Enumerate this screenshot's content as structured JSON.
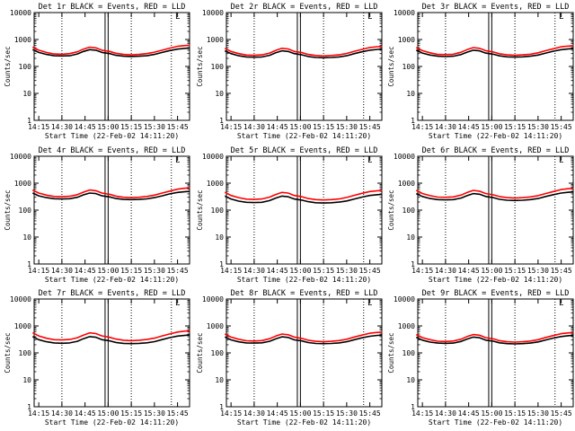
{
  "page": {
    "background": "#ffffff"
  },
  "colors": {
    "events": "#000000",
    "lld": "#ff0000",
    "axis": "#000000"
  },
  "shared": {
    "xlabel": "Start Time (22-Feb-02 14:11:20)",
    "ylabel": "Counts/sec",
    "x_ticks": [
      "14:15",
      "14:30",
      "14:45",
      "15:00",
      "15:15",
      "15:30",
      "15:45"
    ],
    "y_ticks": [
      "1",
      "10",
      "100",
      "1000",
      "10000"
    ],
    "corner_mark": "L"
  },
  "chart_data": [
    {
      "type": "line",
      "title": "Det 1r BLACK = Events, RED = LLD",
      "xlabel": "Start Time (22-Feb-02 14:11:20)",
      "ylabel": "Counts/sec",
      "y_scale": "log",
      "ylim": [
        1,
        10000
      ],
      "x_range_min": [
        14.2,
        15.88
      ],
      "vlines_dotted": [
        "14:30",
        "15:15",
        "15:41"
      ],
      "vlines_solid": [
        "14:58",
        "15:00"
      ],
      "x": [
        "14:11",
        "14:15",
        "14:20",
        "14:25",
        "14:30",
        "14:35",
        "14:40",
        "14:44",
        "14:48",
        "14:52",
        "14:56",
        "15:01",
        "15:05",
        "15:10",
        "15:15",
        "15:20",
        "15:25",
        "15:30",
        "15:35",
        "15:40",
        "15:45",
        "15:50",
        "15:53"
      ],
      "series": [
        {
          "name": "Events",
          "values": [
            420,
            330,
            280,
            250,
            245,
            250,
            290,
            360,
            420,
            400,
            330,
            300,
            260,
            240,
            235,
            240,
            250,
            280,
            330,
            390,
            440,
            470,
            480
          ]
        },
        {
          "name": "LLD",
          "values": [
            520,
            400,
            330,
            290,
            285,
            300,
            350,
            440,
            520,
            490,
            400,
            360,
            310,
            280,
            270,
            280,
            300,
            340,
            400,
            480,
            560,
            600,
            610
          ]
        }
      ]
    },
    {
      "type": "line",
      "title": "Det 2r BLACK = Events, RED = LLD",
      "xlabel": "Start Time (22-Feb-02 14:11:20)",
      "ylabel": "Counts/sec",
      "y_scale": "log",
      "ylim": [
        1,
        10000
      ],
      "x_range_min": [
        14.2,
        15.88
      ],
      "vlines_dotted": [
        "14:30",
        "15:15",
        "15:41"
      ],
      "vlines_solid": [
        "14:58",
        "15:00"
      ],
      "x": [
        "14:11",
        "14:15",
        "14:20",
        "14:25",
        "14:30",
        "14:35",
        "14:40",
        "14:44",
        "14:48",
        "14:52",
        "14:56",
        "15:01",
        "15:05",
        "15:10",
        "15:15",
        "15:20",
        "15:25",
        "15:30",
        "15:35",
        "15:40",
        "15:45",
        "15:50",
        "15:53"
      ],
      "series": [
        {
          "name": "Events",
          "values": [
            380,
            300,
            250,
            225,
            220,
            225,
            260,
            320,
            380,
            360,
            300,
            270,
            235,
            215,
            210,
            215,
            225,
            250,
            300,
            350,
            400,
            430,
            440
          ]
        },
        {
          "name": "LLD",
          "values": [
            470,
            360,
            300,
            265,
            260,
            270,
            315,
            395,
            470,
            445,
            360,
            325,
            280,
            255,
            245,
            255,
            270,
            305,
            365,
            430,
            505,
            540,
            550
          ]
        }
      ]
    },
    {
      "type": "line",
      "title": "Det 3r BLACK = Events, RED = LLD",
      "xlabel": "Start Time (22-Feb-02 14:11:20)",
      "ylabel": "Counts/sec",
      "y_scale": "log",
      "ylim": [
        1,
        10000
      ],
      "x_range_min": [
        14.2,
        15.88
      ],
      "vlines_dotted": [
        "14:30",
        "15:15",
        "15:41"
      ],
      "vlines_solid": [
        "14:58",
        "15:00"
      ],
      "x": [
        "14:11",
        "14:15",
        "14:20",
        "14:25",
        "14:30",
        "14:35",
        "14:40",
        "14:44",
        "14:48",
        "14:52",
        "14:56",
        "15:01",
        "15:05",
        "15:10",
        "15:15",
        "15:20",
        "15:25",
        "15:30",
        "15:35",
        "15:40",
        "15:45",
        "15:50",
        "15:53"
      ],
      "series": [
        {
          "name": "Events",
          "values": [
            400,
            315,
            265,
            240,
            232,
            240,
            275,
            340,
            400,
            380,
            315,
            285,
            248,
            228,
            222,
            228,
            240,
            265,
            315,
            370,
            420,
            450,
            460
          ]
        },
        {
          "name": "LLD",
          "values": [
            500,
            385,
            320,
            280,
            275,
            285,
            335,
            420,
            500,
            470,
            385,
            345,
            295,
            270,
            260,
            270,
            285,
            320,
            385,
            455,
            535,
            570,
            580
          ]
        }
      ]
    },
    {
      "type": "line",
      "title": "Det 4r BLACK = Events, RED = LLD",
      "xlabel": "Start Time (22-Feb-02 14:11:20)",
      "ylabel": "Counts/sec",
      "y_scale": "log",
      "ylim": [
        1,
        10000
      ],
      "x_range_min": [
        14.2,
        15.88
      ],
      "vlines_dotted": [
        "14:30",
        "15:15",
        "15:41"
      ],
      "vlines_solid": [
        "14:58",
        "15:00"
      ],
      "x": [
        "14:11",
        "14:15",
        "14:20",
        "14:25",
        "14:30",
        "14:35",
        "14:40",
        "14:44",
        "14:48",
        "14:52",
        "14:56",
        "15:01",
        "15:05",
        "15:10",
        "15:15",
        "15:20",
        "15:25",
        "15:30",
        "15:35",
        "15:40",
        "15:45",
        "15:50",
        "15:53"
      ],
      "series": [
        {
          "name": "Events",
          "values": [
            430,
            340,
            290,
            265,
            260,
            265,
            300,
            370,
            430,
            410,
            340,
            310,
            270,
            250,
            245,
            250,
            262,
            290,
            340,
            400,
            455,
            485,
            495
          ]
        },
        {
          "name": "LLD",
          "values": [
            560,
            430,
            360,
            320,
            315,
            325,
            375,
            465,
            560,
            525,
            430,
            385,
            330,
            300,
            290,
            300,
            320,
            360,
            430,
            510,
            600,
            650,
            665
          ]
        }
      ]
    },
    {
      "type": "line",
      "title": "Det 5r BLACK = Events, RED = LLD",
      "xlabel": "Start Time (22-Feb-02 14:11:20)",
      "ylabel": "Counts/sec",
      "y_scale": "log",
      "ylim": [
        1,
        10000
      ],
      "x_range_min": [
        14.2,
        15.88
      ],
      "vlines_dotted": [
        "14:30",
        "15:15",
        "15:41"
      ],
      "vlines_solid": [
        "14:58",
        "15:00"
      ],
      "x": [
        "14:11",
        "14:15",
        "14:20",
        "14:25",
        "14:30",
        "14:35",
        "14:40",
        "14:44",
        "14:48",
        "14:52",
        "14:56",
        "15:01",
        "15:05",
        "15:10",
        "15:15",
        "15:20",
        "15:25",
        "15:30",
        "15:35",
        "15:40",
        "15:45",
        "15:50",
        "15:53"
      ],
      "series": [
        {
          "name": "Events",
          "values": [
            330,
            260,
            215,
            195,
            190,
            195,
            225,
            280,
            330,
            315,
            260,
            235,
            205,
            188,
            183,
            188,
            198,
            218,
            260,
            305,
            350,
            375,
            385
          ]
        },
        {
          "name": "LLD",
          "values": [
            460,
            350,
            290,
            255,
            250,
            260,
            305,
            380,
            455,
            430,
            350,
            315,
            270,
            245,
            238,
            245,
            260,
            295,
            355,
            420,
            490,
            525,
            535
          ]
        }
      ]
    },
    {
      "type": "line",
      "title": "Det 6r BLACK = Events, RED = LLD",
      "xlabel": "Start Time (22-Feb-02 14:11:20)",
      "ylabel": "Counts/sec",
      "y_scale": "log",
      "ylim": [
        1,
        10000
      ],
      "x_range_min": [
        14.2,
        15.88
      ],
      "vlines_dotted": [
        "14:30",
        "15:15",
        "15:41"
      ],
      "vlines_solid": [
        "14:58",
        "15:00"
      ],
      "x": [
        "14:11",
        "14:15",
        "14:20",
        "14:25",
        "14:30",
        "14:35",
        "14:40",
        "14:44",
        "14:48",
        "14:52",
        "14:56",
        "15:01",
        "15:05",
        "15:10",
        "15:15",
        "15:20",
        "15:25",
        "15:30",
        "15:35",
        "15:40",
        "15:45",
        "15:50",
        "15:53"
      ],
      "series": [
        {
          "name": "Events",
          "values": [
            410,
            320,
            270,
            245,
            240,
            245,
            280,
            345,
            410,
            390,
            320,
            290,
            252,
            232,
            228,
            232,
            245,
            270,
            320,
            375,
            430,
            460,
            470
          ]
        },
        {
          "name": "LLD",
          "values": [
            540,
            415,
            345,
            305,
            300,
            310,
            360,
            450,
            540,
            505,
            415,
            370,
            318,
            290,
            280,
            290,
            308,
            345,
            415,
            490,
            580,
            625,
            640
          ]
        }
      ]
    },
    {
      "type": "line",
      "title": "Det 7r BLACK = Events, RED = LLD",
      "xlabel": "Start Time (22-Feb-02 14:11:20)",
      "ylabel": "Counts/sec",
      "y_scale": "log",
      "ylim": [
        1,
        10000
      ],
      "x_range_min": [
        14.2,
        15.88
      ],
      "vlines_dotted": [
        "14:30",
        "15:15",
        "15:41"
      ],
      "vlines_solid": [
        "14:58",
        "15:00"
      ],
      "x": [
        "14:11",
        "14:15",
        "14:20",
        "14:25",
        "14:30",
        "14:35",
        "14:40",
        "14:44",
        "14:48",
        "14:52",
        "14:56",
        "15:01",
        "15:05",
        "15:10",
        "15:15",
        "15:20",
        "15:25",
        "15:30",
        "15:35",
        "15:40",
        "15:45",
        "15:50",
        "15:53"
      ],
      "series": [
        {
          "name": "Events",
          "values": [
            400,
            310,
            260,
            235,
            228,
            235,
            270,
            335,
            400,
            380,
            310,
            280,
            243,
            225,
            220,
            225,
            236,
            262,
            312,
            368,
            420,
            450,
            460
          ]
        },
        {
          "name": "LLD",
          "values": [
            560,
            425,
            350,
            310,
            302,
            315,
            365,
            455,
            555,
            520,
            425,
            378,
            325,
            295,
            285,
            295,
            315,
            352,
            425,
            505,
            595,
            645,
            660
          ]
        }
      ]
    },
    {
      "type": "line",
      "title": "Det 8r BLACK = Events, RED = LLD",
      "xlabel": "Start Time (22-Feb-02 14:11:20)",
      "ylabel": "Counts/sec",
      "y_scale": "log",
      "ylim": [
        1,
        10000
      ],
      "x_range_min": [
        14.2,
        15.88
      ],
      "vlines_dotted": [
        "14:30",
        "15:15",
        "15:41"
      ],
      "vlines_solid": [
        "14:58",
        "15:00"
      ],
      "x": [
        "14:11",
        "14:15",
        "14:20",
        "14:25",
        "14:30",
        "14:35",
        "14:40",
        "14:44",
        "14:48",
        "14:52",
        "14:56",
        "15:01",
        "15:05",
        "15:10",
        "15:15",
        "15:20",
        "15:25",
        "15:30",
        "15:35",
        "15:40",
        "15:45",
        "15:50",
        "15:53"
      ],
      "series": [
        {
          "name": "Events",
          "values": [
            390,
            305,
            258,
            235,
            230,
            236,
            270,
            332,
            395,
            375,
            305,
            278,
            242,
            224,
            220,
            224,
            235,
            260,
            308,
            362,
            415,
            445,
            455
          ]
        },
        {
          "name": "LLD",
          "values": [
            500,
            385,
            320,
            282,
            276,
            286,
            335,
            420,
            500,
            470,
            385,
            345,
            296,
            270,
            262,
            270,
            286,
            322,
            388,
            458,
            538,
            575,
            585
          ]
        }
      ]
    },
    {
      "type": "line",
      "title": "Det 9r BLACK = Events, RED = LLD",
      "xlabel": "Start Time (22-Feb-02 14:11:20)",
      "ylabel": "Counts/sec",
      "y_scale": "log",
      "ylim": [
        1,
        10000
      ],
      "x_range_min": [
        14.2,
        15.88
      ],
      "vlines_dotted": [
        "14:30",
        "15:15",
        "15:41"
      ],
      "vlines_solid": [
        "14:58",
        "15:00"
      ],
      "x": [
        "14:11",
        "14:15",
        "14:20",
        "14:25",
        "14:30",
        "14:35",
        "14:40",
        "14:44",
        "14:48",
        "14:52",
        "14:56",
        "15:01",
        "15:05",
        "15:10",
        "15:15",
        "15:20",
        "15:25",
        "15:30",
        "15:35",
        "15:40",
        "15:45",
        "15:50",
        "15:53"
      ],
      "series": [
        {
          "name": "Events",
          "values": [
            380,
            298,
            252,
            230,
            225,
            230,
            265,
            325,
            385,
            365,
            298,
            272,
            237,
            220,
            215,
            220,
            230,
            255,
            302,
            355,
            405,
            435,
            445
          ]
        },
        {
          "name": "LLD",
          "values": [
            480,
            370,
            308,
            272,
            266,
            276,
            322,
            404,
            480,
            452,
            370,
            332,
            285,
            260,
            252,
            260,
            275,
            310,
            373,
            440,
            518,
            555,
            565
          ]
        }
      ]
    }
  ]
}
